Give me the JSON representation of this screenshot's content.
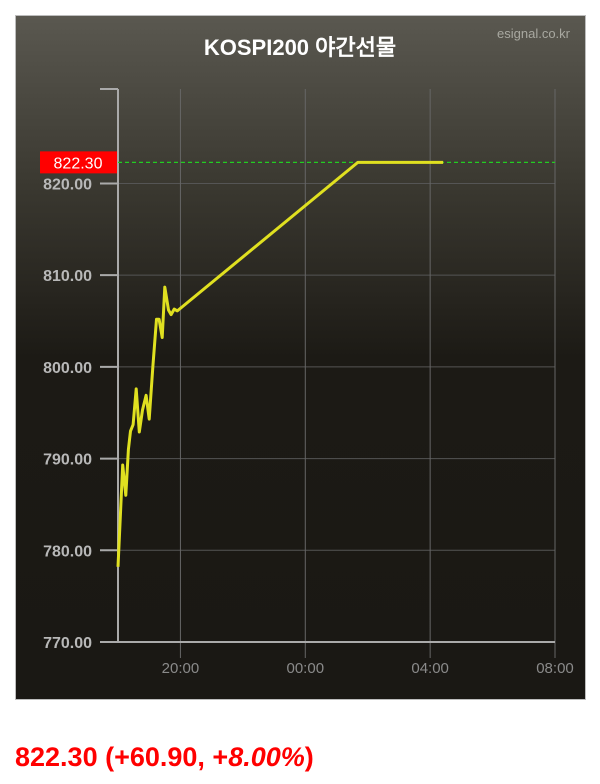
{
  "chart_data": {
    "type": "line",
    "title": "KOSPI200 야간선물",
    "source": "esignal.co.kr",
    "xlabel": "",
    "ylabel": "",
    "x_ticks": [
      "20:00",
      "00:00",
      "04:00",
      "08:00"
    ],
    "x_range": [
      "18:00",
      "08:00"
    ],
    "y_ticks": [
      "820.00",
      "810.00",
      "800.00",
      "790.00",
      "780.00",
      "770.00"
    ],
    "y_range": [
      770,
      830.3
    ],
    "grid": true,
    "line_color": "#e0e020",
    "current_line": {
      "value": 822.3,
      "label": "822.30",
      "color": "#22cc22",
      "label_bg": "#ff0000"
    },
    "series": [
      {
        "x": [
          "18:00",
          "18:09",
          "18:15",
          "18:20",
          "18:24",
          "18:29",
          "18:35",
          "18:41",
          "18:47",
          "18:54",
          "19:00",
          "19:07",
          "19:14",
          "19:19",
          "19:25",
          "19:30",
          "19:37",
          "19:42",
          "19:48",
          "19:54",
          "01:41",
          "04:25"
        ],
        "y": [
          778.2,
          789.3,
          786.0,
          791.0,
          793.0,
          793.7,
          797.6,
          792.9,
          795.3,
          796.9,
          794.3,
          800.1,
          805.2,
          805.2,
          803.2,
          808.7,
          806.2,
          805.7,
          806.3,
          806.1,
          822.3,
          822.3
        ]
      }
    ]
  },
  "summary": {
    "price": "822.30",
    "change": "(+60.90, +",
    "percent": "8.00%",
    "close": ")",
    "color": "#ff0000"
  }
}
